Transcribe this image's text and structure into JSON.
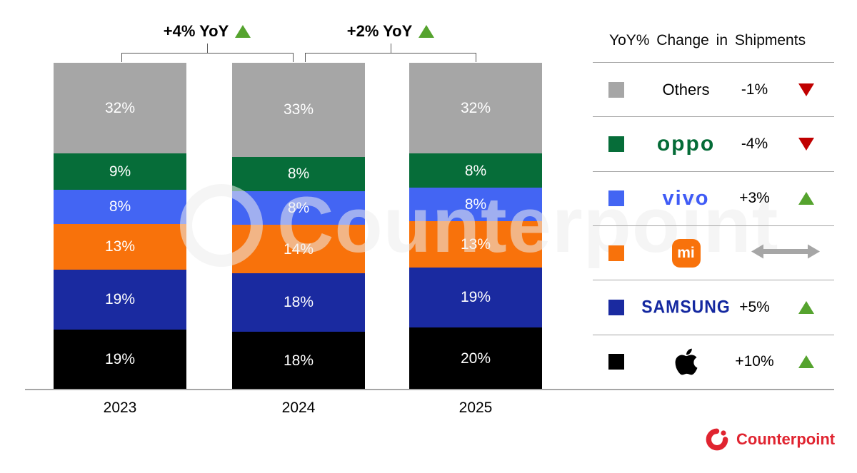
{
  "chart_data": {
    "type": "bar",
    "stacked": true,
    "categories": [
      "2023",
      "2024",
      "2025"
    ],
    "series": [
      {
        "name": "Apple",
        "color": "#000000",
        "values": [
          19,
          18,
          20
        ]
      },
      {
        "name": "Samsung",
        "color": "#1a2aa0",
        "values": [
          19,
          18,
          19
        ]
      },
      {
        "name": "Xiaomi",
        "color": "#f8720b",
        "values": [
          13,
          14,
          13
        ]
      },
      {
        "name": "vivo",
        "color": "#4365f3",
        "values": [
          8,
          8,
          8
        ]
      },
      {
        "name": "OPPO",
        "color": "#066d39",
        "values": [
          9,
          8,
          8
        ]
      },
      {
        "name": "Others",
        "color": "#a6a6a6",
        "values": [
          32,
          33,
          32
        ]
      }
    ],
    "value_suffix": "%",
    "ylim": [
      0,
      100
    ],
    "grid": false,
    "legend_position": "right",
    "annotations": [
      {
        "label": "+4% YoY",
        "direction": "up",
        "from": "2023",
        "to": "2024"
      },
      {
        "label": "+2% YoY",
        "direction": "up",
        "from": "2024",
        "to": "2025"
      }
    ]
  },
  "legend": {
    "title": "YoY% Change in Shipments",
    "rows": [
      {
        "brand": "Others",
        "label": "Others",
        "change": "-1%",
        "direction": "down",
        "swatch": "#a6a6a6"
      },
      {
        "brand": "OPPO",
        "label": "oppo",
        "change": "-4%",
        "direction": "down",
        "swatch": "#066d39"
      },
      {
        "brand": "vivo",
        "label": "vivo",
        "change": "+3%",
        "direction": "up",
        "swatch": "#4365f3"
      },
      {
        "brand": "Xiaomi",
        "label": "mi",
        "change": "",
        "direction": "flat",
        "swatch": "#f8720b"
      },
      {
        "brand": "Samsung",
        "label": "SAMSUNG",
        "change": "+5%",
        "direction": "up",
        "swatch": "#1a2aa0"
      },
      {
        "brand": "Apple",
        "label": "",
        "change": "+10%",
        "direction": "up",
        "swatch": "#000000"
      }
    ]
  },
  "colors": {
    "up": "#55a32e",
    "down": "#c00000",
    "flat": "#a6a6a6",
    "axis": "#a6a6a6",
    "bracket": "#595959",
    "counterpoint_red": "#e02430"
  },
  "watermark": "Counterpoint",
  "footer": {
    "brand": "Counterpoint"
  }
}
